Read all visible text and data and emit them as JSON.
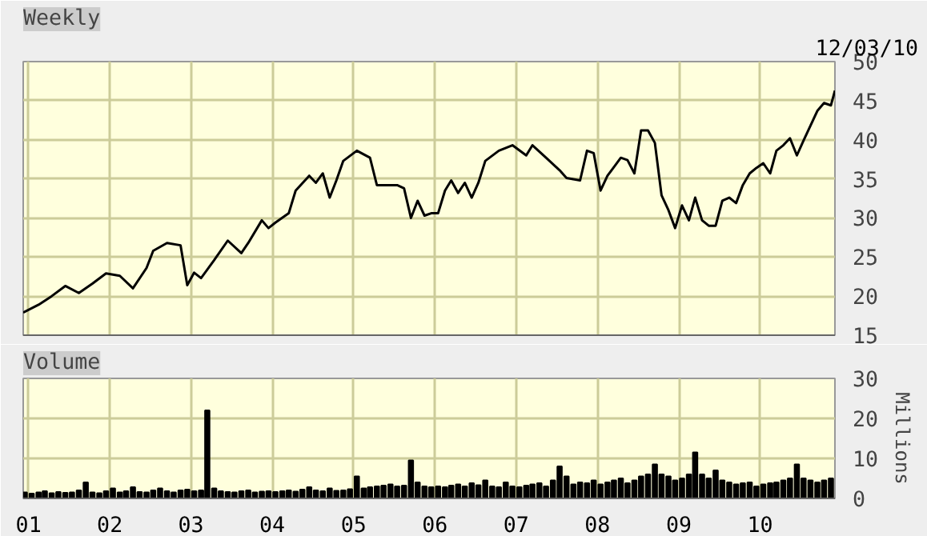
{
  "chart_data": [
    {
      "type": "line",
      "title": "Weekly",
      "annotations": [
        "12/03/10"
      ],
      "x": [
        "2000-12-08",
        "2001-02-15",
        "2001-04-15",
        "2001-06-15",
        "2001-08-15",
        "2001-10-15",
        "2001-12-15",
        "2002-02-15",
        "2002-04-15",
        "2002-06-15",
        "2002-07-15",
        "2002-09-15",
        "2002-11-15",
        "2002-12-15",
        "2003-01-15",
        "2003-02-15",
        "2003-04-15",
        "2003-06-15",
        "2003-08-15",
        "2003-09-15",
        "2003-11-15",
        "2003-12-15",
        "2004-01-15",
        "2004-03-15",
        "2004-04-15",
        "2004-06-15",
        "2004-07-15",
        "2004-08-15",
        "2004-09-15",
        "2004-10-15",
        "2004-11-15",
        "2005-01-15",
        "2005-03-15",
        "2005-04-15",
        "2005-06-15",
        "2005-07-15",
        "2005-08-15",
        "2005-09-15",
        "2005-10-15",
        "2005-11-15",
        "2005-12-15",
        "2006-01-15",
        "2006-02-15",
        "2006-03-15",
        "2006-04-15",
        "2006-05-15",
        "2006-06-15",
        "2006-07-15",
        "2006-08-15",
        "2006-10-15",
        "2006-12-15",
        "2007-02-15",
        "2007-03-15",
        "2007-05-15",
        "2007-07-15",
        "2007-08-15",
        "2007-10-15",
        "2007-11-15",
        "2007-12-15",
        "2008-01-15",
        "2008-02-15",
        "2008-04-15",
        "2008-05-15",
        "2008-06-15",
        "2008-07-15",
        "2008-08-15",
        "2008-09-15",
        "2008-10-15",
        "2008-11-15",
        "2008-12-15",
        "2009-01-15",
        "2009-02-15",
        "2009-03-15",
        "2009-04-15",
        "2009-05-15",
        "2009-06-15",
        "2009-07-15",
        "2009-08-15",
        "2009-09-15",
        "2009-10-15",
        "2009-11-15",
        "2009-12-15",
        "2010-01-15",
        "2010-02-15",
        "2010-03-15",
        "2010-04-15",
        "2010-05-15",
        "2010-06-15",
        "2010-07-15",
        "2010-08-15",
        "2010-09-15",
        "2010-10-15",
        "2010-11-15",
        "2010-12-03"
      ],
      "series": [
        {
          "color": "#000000",
          "values": [
            17.9,
            18.9,
            20.0,
            21.3,
            20.4,
            21.6,
            22.9,
            22.6,
            21.0,
            23.6,
            25.8,
            26.8,
            26.5,
            21.4,
            23.0,
            22.3,
            24.6,
            27.1,
            25.5,
            26.8,
            29.7,
            28.7,
            29.4,
            30.6,
            33.5,
            35.4,
            34.5,
            35.7,
            32.6,
            34.8,
            37.3,
            38.6,
            37.7,
            34.2,
            34.2,
            34.2,
            33.8,
            30.0,
            32.2,
            30.3,
            30.6,
            30.6,
            33.5,
            34.8,
            33.2,
            34.5,
            32.6,
            34.5,
            37.3,
            38.6,
            39.3,
            38.0,
            39.3,
            37.7,
            36.1,
            35.1,
            34.8,
            38.6,
            38.3,
            33.5,
            35.4,
            37.7,
            37.4,
            35.7,
            41.2,
            41.2,
            39.6,
            32.9,
            31.0,
            28.7,
            31.6,
            29.7,
            32.6,
            29.7,
            29.0,
            29.0,
            32.2,
            32.6,
            31.9,
            34.2,
            35.7,
            36.4,
            37.0,
            35.7,
            38.6,
            39.3,
            40.2,
            38.0,
            39.9,
            41.8,
            43.7,
            44.7,
            44.4,
            46.3
          ]
        }
      ],
      "xlim": [
        "2000-12-08",
        "2010-12-03"
      ],
      "xticks": [
        {
          "value": "2001-01-01",
          "label": null
        },
        {
          "value": "2002-01-01",
          "label": null
        },
        {
          "value": "2003-01-01",
          "label": null
        },
        {
          "value": "2004-01-01",
          "label": null
        },
        {
          "value": "2005-01-01",
          "label": null
        },
        {
          "value": "2006-01-01",
          "label": null
        },
        {
          "value": "2007-01-01",
          "label": null
        },
        {
          "value": "2008-01-01",
          "label": null
        },
        {
          "value": "2009-01-01",
          "label": null
        },
        {
          "value": "2010-01-01",
          "label": null
        }
      ],
      "ylim": [
        15,
        50
      ],
      "yticks": [
        15,
        20,
        25,
        30,
        35,
        40,
        45,
        50
      ],
      "tick_labels": "y",
      "grid": true
    },
    {
      "type": "bar",
      "title": "Volume",
      "ylabel": "Millions",
      "x": [
        "2000-12-15",
        "2001-01-15",
        "2001-02-15",
        "2001-03-15",
        "2001-04-15",
        "2001-05-15",
        "2001-06-15",
        "2001-07-15",
        "2001-08-15",
        "2001-09-15",
        "2001-10-15",
        "2001-11-15",
        "2001-12-15",
        "2002-01-15",
        "2002-02-15",
        "2002-03-15",
        "2002-04-15",
        "2002-05-15",
        "2002-06-15",
        "2002-07-15",
        "2002-08-15",
        "2002-09-15",
        "2002-10-15",
        "2002-11-15",
        "2002-12-15",
        "2003-01-15",
        "2003-02-15",
        "2003-03-15",
        "2003-04-15",
        "2003-05-15",
        "2003-06-15",
        "2003-07-15",
        "2003-08-15",
        "2003-09-15",
        "2003-10-15",
        "2003-11-15",
        "2003-12-15",
        "2004-01-15",
        "2004-02-15",
        "2004-03-15",
        "2004-04-15",
        "2004-05-15",
        "2004-06-15",
        "2004-07-15",
        "2004-08-15",
        "2004-09-15",
        "2004-10-15",
        "2004-11-15",
        "2004-12-15",
        "2005-01-15",
        "2005-02-15",
        "2005-03-15",
        "2005-04-15",
        "2005-05-15",
        "2005-06-15",
        "2005-07-15",
        "2005-08-15",
        "2005-09-15",
        "2005-10-15",
        "2005-11-15",
        "2005-12-15",
        "2006-01-15",
        "2006-02-15",
        "2006-03-15",
        "2006-04-15",
        "2006-05-15",
        "2006-06-15",
        "2006-07-15",
        "2006-08-15",
        "2006-09-15",
        "2006-10-15",
        "2006-11-15",
        "2006-12-15",
        "2007-01-15",
        "2007-02-15",
        "2007-03-15",
        "2007-04-15",
        "2007-05-15",
        "2007-06-15",
        "2007-07-15",
        "2007-08-15",
        "2007-09-15",
        "2007-10-15",
        "2007-11-15",
        "2007-12-15",
        "2008-01-15",
        "2008-02-15",
        "2008-03-15",
        "2008-04-15",
        "2008-05-15",
        "2008-06-15",
        "2008-07-15",
        "2008-08-15",
        "2008-09-15",
        "2008-10-15",
        "2008-11-15",
        "2008-12-15",
        "2009-01-15",
        "2009-02-15",
        "2009-03-15",
        "2009-04-15",
        "2009-05-15",
        "2009-06-15",
        "2009-07-15",
        "2009-08-15",
        "2009-09-15",
        "2009-10-15",
        "2009-11-15",
        "2009-12-15",
        "2010-01-15",
        "2010-02-15",
        "2010-03-15",
        "2010-04-15",
        "2010-05-15",
        "2010-06-15",
        "2010-07-15",
        "2010-08-15",
        "2010-09-15",
        "2010-10-15",
        "2010-11-15"
      ],
      "series": [
        {
          "color": "#000000",
          "values": [
            1.5,
            1.2,
            1.5,
            1.8,
            1.3,
            1.6,
            1.4,
            1.5,
            2.0,
            4.0,
            1.5,
            1.3,
            1.8,
            2.5,
            1.5,
            1.8,
            2.8,
            1.6,
            1.5,
            2.0,
            2.5,
            1.8,
            1.5,
            2.0,
            2.2,
            1.8,
            2.0,
            22,
            2.5,
            1.8,
            1.6,
            1.5,
            1.8,
            2.0,
            1.5,
            1.7,
            1.8,
            1.6,
            1.8,
            2.0,
            1.7,
            2.2,
            2.8,
            2.0,
            1.8,
            2.5,
            1.9,
            2.0,
            2.3,
            5.5,
            2.5,
            2.8,
            3.0,
            3.2,
            3.5,
            3.0,
            3.2,
            9.5,
            4.0,
            3.0,
            2.8,
            3.0,
            2.8,
            3.2,
            3.5,
            3.0,
            3.8,
            3.3,
            4.5,
            3.0,
            2.8,
            4.0,
            3.0,
            2.8,
            3.2,
            3.5,
            3.8,
            3.0,
            4.5,
            8.0,
            5.5,
            3.5,
            4.0,
            3.8,
            4.5,
            3.5,
            4.0,
            4.5,
            5.0,
            3.8,
            4.5,
            5.5,
            6.0,
            8.5,
            6.0,
            5.5,
            4.5,
            5.0,
            6.0,
            11.5,
            6.0,
            5.0,
            7.0,
            4.5,
            4.0,
            3.5,
            3.8,
            4.0,
            3.0,
            3.5,
            3.8,
            4.0,
            4.5,
            5.0,
            8.5,
            5.0,
            4.5,
            4.0,
            4.5,
            5.0
          ]
        }
      ],
      "xlim": [
        "2000-12-08",
        "2010-12-03"
      ],
      "xticks": [
        {
          "value": "2001-01-01",
          "label": "01"
        },
        {
          "value": "2002-01-01",
          "label": "02"
        },
        {
          "value": "2003-01-01",
          "label": "03"
        },
        {
          "value": "2004-01-01",
          "label": "04"
        },
        {
          "value": "2005-01-01",
          "label": "05"
        },
        {
          "value": "2006-01-01",
          "label": "06"
        },
        {
          "value": "2007-01-01",
          "label": "07"
        },
        {
          "value": "2008-01-01",
          "label": "08"
        },
        {
          "value": "2009-01-01",
          "label": "09"
        },
        {
          "value": "2010-01-01",
          "label": "10"
        }
      ],
      "ylim": [
        0,
        30
      ],
      "yticks": [
        0,
        10,
        20,
        30
      ],
      "grid": true
    }
  ]
}
